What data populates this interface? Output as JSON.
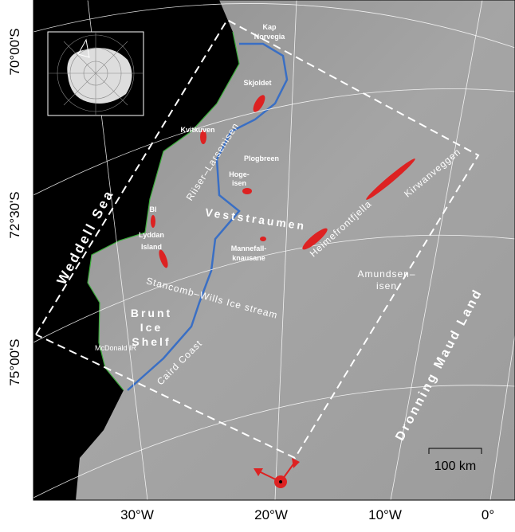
{
  "axes": {
    "lat_labels": [
      "70°00'S",
      "72°30'S",
      "75°00'S"
    ],
    "lon_labels": [
      "30°W",
      "20°W",
      "10°W",
      "0°"
    ]
  },
  "labels": {
    "kap_norvegia": [
      "Kap",
      "Norvegia"
    ],
    "skjoldet": "Skjoldet",
    "kvitkuven": "Kvitkuven",
    "plogbreen": "Plogbreen",
    "hogeisen": [
      "Hoge-",
      "isen"
    ],
    "riiser_larsenisen": "Riiser–Larsenisen",
    "veststraumen": "Veststraumen",
    "mannefallknausane": [
      "Mannefall-",
      "knausane"
    ],
    "heimefrontfjella": "Heimefrontfjella",
    "kirwanveggen": "Kirwanveggen",
    "amundsenisen": [
      "Amundsen–",
      "isen"
    ],
    "weddell_sea": "Weddell Sea",
    "bl": "Bl",
    "lyddan_island": [
      "Lyddan",
      "Island"
    ],
    "stancomb_wills": "Stancomb–Wills Ice stream",
    "brunt_ice_shelf": [
      "Brunt",
      "Ice",
      "Shelf"
    ],
    "mcdonald_ir": "McDonald IR",
    "caird_coast": "Caird Coast",
    "dronning_maud_land": "Dronning Maud Land"
  },
  "scale_bar": "100 km"
}
